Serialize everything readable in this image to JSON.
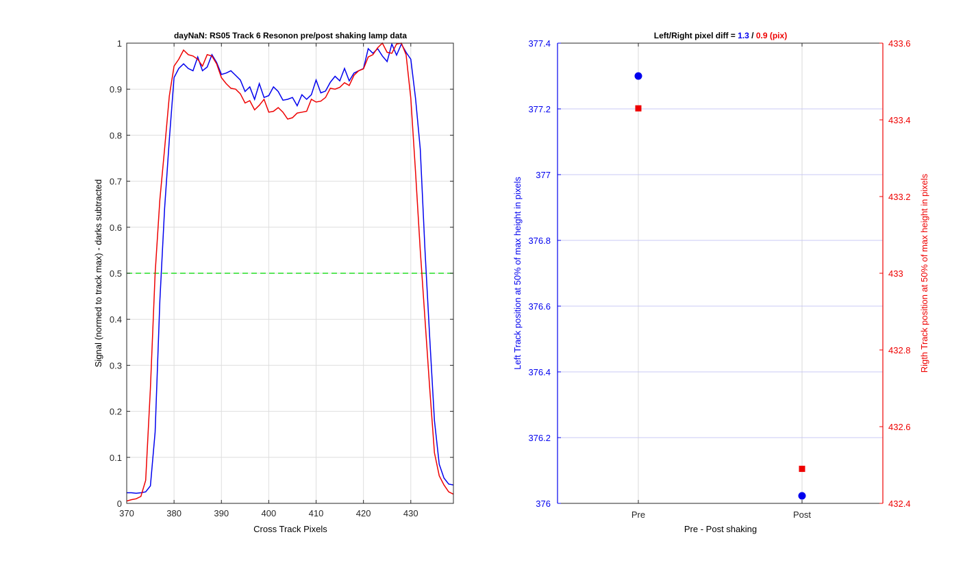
{
  "chart_data": [
    {
      "type": "line",
      "title": "dayNaN: RS05  Track 6 Resonon pre/post shaking lamp data",
      "xlabel": "Cross Track Pixels",
      "ylabel": "Signal (normed to track max) - darks subtracted",
      "xlim": [
        370,
        439
      ],
      "ylim": [
        0,
        1
      ],
      "xticks": [
        370,
        380,
        390,
        400,
        410,
        420,
        430
      ],
      "yticks": [
        0,
        0.1,
        0.2,
        0.3,
        0.4,
        0.5,
        0.6,
        0.7,
        0.8,
        0.9,
        1
      ],
      "grid": true,
      "threshold": {
        "y": 0.5,
        "color": "#22dd22",
        "style": "dashed"
      },
      "series": [
        {
          "color": "#0000ee",
          "x": [
            370,
            371,
            372,
            373,
            374,
            375,
            376,
            377,
            378,
            379,
            380,
            381,
            382,
            383,
            384,
            385,
            386,
            387,
            388,
            389,
            390,
            391,
            392,
            393,
            394,
            395,
            396,
            397,
            398,
            399,
            400,
            401,
            402,
            403,
            404,
            405,
            406,
            407,
            408,
            409,
            410,
            411,
            412,
            413,
            414,
            415,
            416,
            417,
            418,
            419,
            420,
            421,
            422,
            423,
            424,
            425,
            426,
            427,
            428,
            429,
            430,
            431,
            432,
            433,
            434,
            435,
            436,
            437,
            438,
            439
          ],
          "y": [
            0.023,
            0.023,
            0.022,
            0.023,
            0.025,
            0.038,
            0.155,
            0.44,
            0.64,
            0.79,
            0.925,
            0.945,
            0.955,
            0.945,
            0.94,
            0.97,
            0.94,
            0.948,
            0.975,
            0.958,
            0.932,
            0.935,
            0.94,
            0.93,
            0.92,
            0.895,
            0.905,
            0.878,
            0.912,
            0.882,
            0.886,
            0.905,
            0.895,
            0.876,
            0.878,
            0.882,
            0.864,
            0.888,
            0.878,
            0.888,
            0.92,
            0.892,
            0.896,
            0.915,
            0.928,
            0.918,
            0.945,
            0.918,
            0.935,
            0.94,
            0.945,
            0.988,
            0.978,
            0.988,
            0.972,
            0.96,
            0.998,
            0.974,
            0.998,
            0.98,
            0.965,
            0.88,
            0.77,
            0.55,
            0.36,
            0.18,
            0.085,
            0.055,
            0.042,
            0.04
          ]
        },
        {
          "color": "#ee0000",
          "x": [
            370,
            371,
            372,
            373,
            374,
            375,
            376,
            377,
            378,
            379,
            380,
            381,
            382,
            383,
            384,
            385,
            386,
            387,
            388,
            389,
            390,
            391,
            392,
            393,
            394,
            395,
            396,
            397,
            398,
            399,
            400,
            401,
            402,
            403,
            404,
            405,
            406,
            407,
            408,
            409,
            410,
            411,
            412,
            413,
            414,
            415,
            416,
            417,
            418,
            419,
            420,
            421,
            422,
            423,
            424,
            425,
            426,
            427,
            428,
            429,
            430,
            431,
            432,
            433,
            434,
            435,
            436,
            437,
            438,
            439
          ],
          "y": [
            0.005,
            0.008,
            0.01,
            0.015,
            0.05,
            0.25,
            0.5,
            0.66,
            0.77,
            0.885,
            0.95,
            0.965,
            0.985,
            0.975,
            0.972,
            0.965,
            0.95,
            0.975,
            0.972,
            0.955,
            0.925,
            0.912,
            0.902,
            0.9,
            0.89,
            0.87,
            0.875,
            0.855,
            0.865,
            0.878,
            0.85,
            0.852,
            0.86,
            0.85,
            0.835,
            0.838,
            0.848,
            0.85,
            0.852,
            0.878,
            0.872,
            0.874,
            0.882,
            0.902,
            0.9,
            0.904,
            0.914,
            0.908,
            0.93,
            0.94,
            0.944,
            0.97,
            0.975,
            0.99,
            1.0,
            0.98,
            0.978,
            0.998,
            1.0,
            0.975,
            0.88,
            0.72,
            0.55,
            0.4,
            0.25,
            0.11,
            0.06,
            0.04,
            0.025,
            0.02
          ]
        }
      ]
    },
    {
      "type": "scatter",
      "title": {
        "prefix": "Left/Right pixel diff = ",
        "left_value": "1.3",
        "separator": " / ",
        "right_value": "0.9 (pix)"
      },
      "xlabel": "Pre - Post shaking",
      "ylabel_left": "Left Track position at 50% of max height in pixels",
      "ylabel_right": "Rigth Track position at 50% of max height in pixels",
      "categories": [
        "Pre",
        "Post"
      ],
      "ylim_left": [
        376,
        377.4
      ],
      "ylim_right": [
        432.4,
        433.6
      ],
      "yticks_left": [
        376,
        376.2,
        376.4,
        376.6,
        376.8,
        377,
        377.2,
        377.4
      ],
      "yticks_right": [
        432.4,
        432.6,
        432.8,
        433,
        433.2,
        433.4,
        433.6
      ],
      "left_color": "#0000ee",
      "right_color": "#ee0000",
      "grid": true,
      "series": [
        {
          "axis": "left",
          "marker": "circle",
          "color": "#0000ee",
          "values": [
            377.3,
            376.023
          ]
        },
        {
          "axis": "right",
          "marker": "square",
          "color": "#ee0000",
          "values": [
            433.43,
            432.49
          ]
        }
      ]
    }
  ]
}
